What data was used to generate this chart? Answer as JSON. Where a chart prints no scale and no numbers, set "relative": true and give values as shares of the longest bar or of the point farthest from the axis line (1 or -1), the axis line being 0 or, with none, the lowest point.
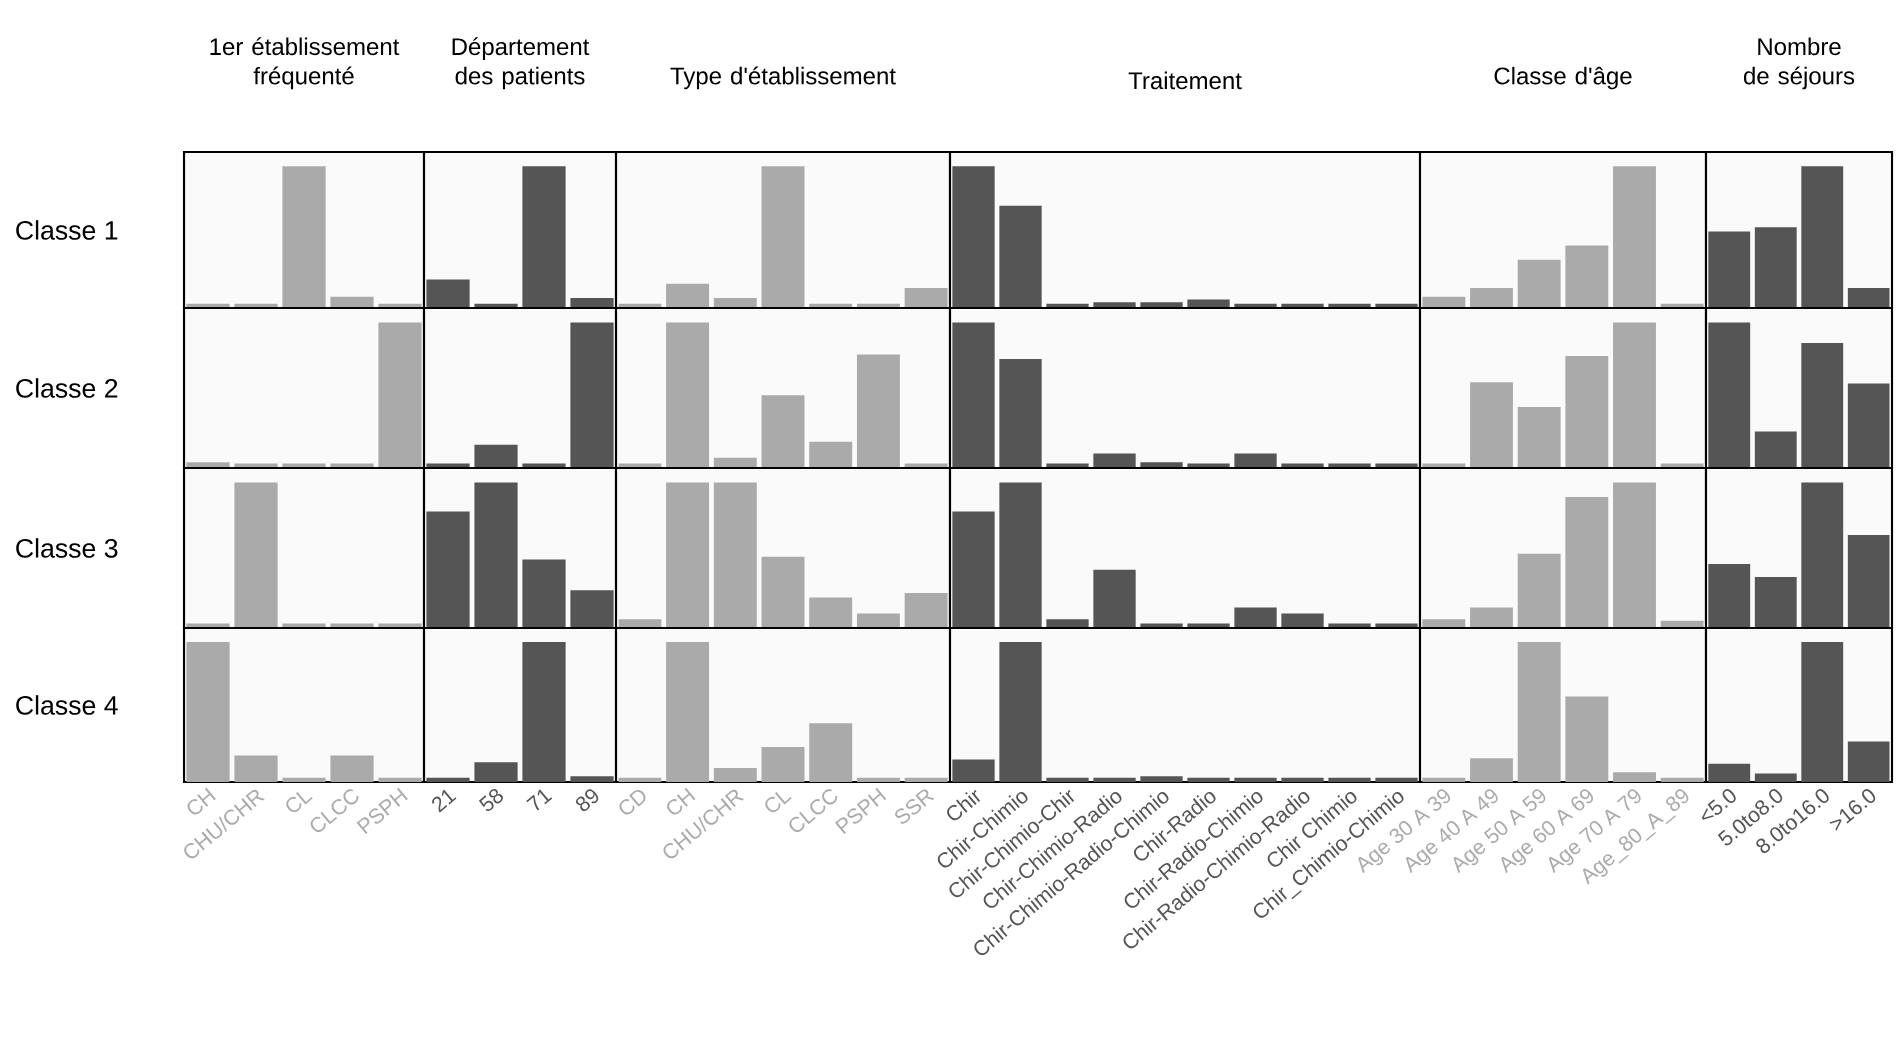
{
  "chart_data": [
    {
      "type": "bar",
      "relative": true,
      "title": "1er établissement fréquenté",
      "ylabel": "Classe 1",
      "tick_labels": false,
      "color": "#aaaaaa",
      "categories": [
        null,
        null,
        null,
        null,
        null
      ],
      "values": [
        0.03,
        0.03,
        1,
        0.08,
        0.03
      ]
    },
    {
      "type": "bar",
      "relative": true,
      "title": "Département des patients",
      "tick_labels": false,
      "color": "#555555",
      "categories": [
        null,
        null,
        null,
        null
      ],
      "values": [
        0.2,
        0.03,
        1,
        0.07
      ]
    },
    {
      "type": "bar",
      "relative": true,
      "title": "Type d'établissement",
      "tick_labels": false,
      "color": "#aaaaaa",
      "categories": [
        null,
        null,
        null,
        null,
        null,
        null,
        null
      ],
      "values": [
        0.03,
        0.17,
        0.07,
        1,
        0.03,
        0.03,
        0.14
      ]
    },
    {
      "type": "bar",
      "relative": true,
      "title": "Traitement",
      "tick_labels": false,
      "color": "#555555",
      "categories": [
        null,
        null,
        null,
        null,
        null,
        null,
        null,
        null,
        null,
        null
      ],
      "values": [
        1,
        0.72,
        0.03,
        0.04,
        0.04,
        0.06,
        0.03,
        0.03,
        0.03,
        0.03
      ]
    },
    {
      "type": "bar",
      "relative": true,
      "title": "Classe d'âge",
      "tick_labels": false,
      "color": "#aaaaaa",
      "categories": [
        null,
        null,
        null,
        null,
        null,
        null
      ],
      "values": [
        0.08,
        0.14,
        0.34,
        0.44,
        1,
        0.03
      ]
    },
    {
      "type": "bar",
      "relative": true,
      "title": "Nombre de séjours",
      "tick_labels": false,
      "color": "#555555",
      "categories": [
        null,
        null,
        null,
        null
      ],
      "values": [
        0.54,
        0.57,
        1,
        0.14
      ]
    },
    {
      "type": "bar",
      "relative": true,
      "ylabel": "Classe 2",
      "tick_labels": false,
      "color": "#aaaaaa",
      "categories": [
        null,
        null,
        null,
        null,
        null
      ],
      "values": [
        0.04,
        0.03,
        0.03,
        0.03,
        1
      ]
    },
    {
      "type": "bar",
      "relative": true,
      "tick_labels": false,
      "color": "#555555",
      "categories": [
        null,
        null,
        null,
        null
      ],
      "values": [
        0.03,
        0.16,
        0.03,
        1
      ]
    },
    {
      "type": "bar",
      "relative": true,
      "tick_labels": false,
      "color": "#aaaaaa",
      "categories": [
        null,
        null,
        null,
        null,
        null,
        null,
        null
      ],
      "values": [
        0.03,
        1,
        0.07,
        0.5,
        0.18,
        0.78,
        0.03
      ]
    },
    {
      "type": "bar",
      "relative": true,
      "tick_labels": false,
      "color": "#555555",
      "categories": [
        null,
        null,
        null,
        null,
        null,
        null,
        null,
        null,
        null,
        null
      ],
      "values": [
        1,
        0.75,
        0.03,
        0.1,
        0.04,
        0.03,
        0.1,
        0.03,
        0.03,
        0.03
      ]
    },
    {
      "type": "bar",
      "relative": true,
      "tick_labels": false,
      "color": "#aaaaaa",
      "categories": [
        null,
        null,
        null,
        null,
        null,
        null
      ],
      "values": [
        0.03,
        0.59,
        0.42,
        0.77,
        1,
        0.03
      ]
    },
    {
      "type": "bar",
      "relative": true,
      "tick_labels": false,
      "color": "#555555",
      "categories": [
        null,
        null,
        null,
        null
      ],
      "values": [
        1,
        0.25,
        0.86,
        0.58
      ]
    },
    {
      "type": "bar",
      "relative": true,
      "ylabel": "Classe 3",
      "tick_labels": false,
      "color": "#aaaaaa",
      "categories": [
        null,
        null,
        null,
        null,
        null
      ],
      "values": [
        0.03,
        1,
        0.03,
        0.03,
        0.03
      ]
    },
    {
      "type": "bar",
      "relative": true,
      "tick_labels": false,
      "color": "#555555",
      "categories": [
        null,
        null,
        null,
        null
      ],
      "values": [
        0.8,
        1,
        0.47,
        0.26
      ]
    },
    {
      "type": "bar",
      "relative": true,
      "tick_labels": false,
      "color": "#aaaaaa",
      "categories": [
        null,
        null,
        null,
        null,
        null,
        null,
        null
      ],
      "values": [
        0.06,
        1,
        1,
        0.49,
        0.21,
        0.1,
        0.24
      ]
    },
    {
      "type": "bar",
      "relative": true,
      "tick_labels": false,
      "color": "#555555",
      "categories": [
        null,
        null,
        null,
        null,
        null,
        null,
        null,
        null,
        null,
        null
      ],
      "values": [
        0.8,
        1,
        0.06,
        0.4,
        0.03,
        0.03,
        0.14,
        0.1,
        0.03,
        0.03
      ]
    },
    {
      "type": "bar",
      "relative": true,
      "tick_labels": false,
      "color": "#aaaaaa",
      "categories": [
        null,
        null,
        null,
        null,
        null,
        null
      ],
      "values": [
        0.06,
        0.14,
        0.51,
        0.9,
        1,
        0.05
      ]
    },
    {
      "type": "bar",
      "relative": true,
      "tick_labels": false,
      "color": "#555555",
      "categories": [
        null,
        null,
        null,
        null
      ],
      "values": [
        0.44,
        0.35,
        1,
        0.64
      ]
    },
    {
      "type": "bar",
      "relative": true,
      "ylabel": "Classe 4",
      "tick_labels": "x",
      "color": "#aaaaaa",
      "categories": [
        "CH",
        "CHU/CHR",
        "CL",
        "CLCC",
        "PSPH"
      ],
      "values": [
        1,
        0.19,
        0.03,
        0.19,
        0.03
      ]
    },
    {
      "type": "bar",
      "relative": true,
      "tick_labels": "x",
      "color": "#555555",
      "categories": [
        "21",
        "58",
        "71",
        "89"
      ],
      "values": [
        0.03,
        0.14,
        1,
        0.04
      ]
    },
    {
      "type": "bar",
      "relative": true,
      "tick_labels": "x",
      "color": "#aaaaaa",
      "categories": [
        "CD",
        "CH",
        "CHU/CHR",
        "CL",
        "CLCC",
        "PSPH",
        "SSR"
      ],
      "values": [
        0.03,
        1,
        0.1,
        0.25,
        0.42,
        0.03,
        0.03
      ]
    },
    {
      "type": "bar",
      "relative": true,
      "tick_labels": "x",
      "color": "#555555",
      "categories": [
        "Chir",
        "Chir-Chimio",
        "Chir-Chimio-Chir",
        "Chir-Chimio-Radio",
        "Chir-Chimio-Radio-Chimio",
        "Chir-Radio",
        "Chir-Radio-Chimio",
        "Chir-Radio-Chimio-Radio",
        "Chir Chimio",
        "Chir_Chimio-Chimio"
      ],
      "values": [
        0.16,
        1,
        0.03,
        0.03,
        0.04,
        0.03,
        0.03,
        0.03,
        0.03,
        0.03
      ]
    },
    {
      "type": "bar",
      "relative": true,
      "tick_labels": "x",
      "color": "#aaaaaa",
      "categories": [
        "Age 30 A 39",
        "Age 40 A 49",
        "Age 50 A 59",
        "Age 60 A 69",
        "Age 70 A 79",
        "Age_80_A_89"
      ],
      "values": [
        0.03,
        0.17,
        1,
        0.61,
        0.07,
        0.03
      ]
    },
    {
      "type": "bar",
      "relative": true,
      "tick_labels": "x",
      "color": "#555555",
      "categories": [
        "<5.0",
        "5.0to8.0",
        "8.0to16.0",
        ">16.0"
      ],
      "values": [
        0.13,
        0.06,
        1,
        0.29
      ]
    }
  ]
}
